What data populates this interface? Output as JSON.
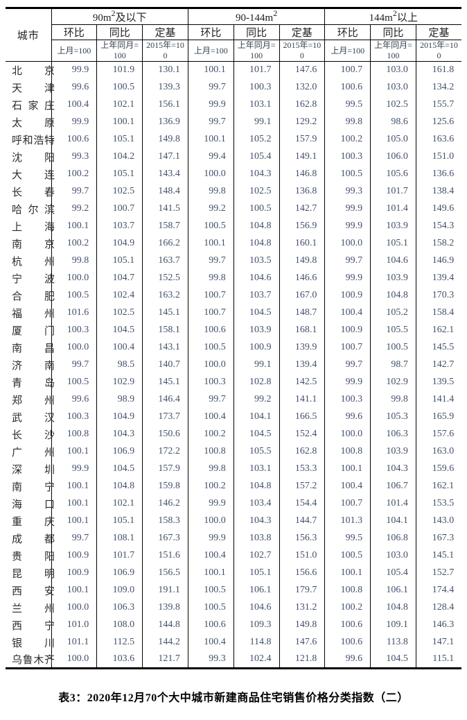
{
  "table": {
    "city_header": "城市",
    "groups": [
      {
        "prefix": "90m",
        "sup": "2",
        "suffix": "及以下"
      },
      {
        "prefix": "90-144m",
        "sup": "2",
        "suffix": ""
      },
      {
        "prefix": "144m",
        "sup": "2",
        "suffix": "以上"
      }
    ],
    "sub_headers": [
      "环比",
      "同比",
      "定基"
    ],
    "base_labels": [
      "上月=100",
      "上年同月=100",
      "2015年=100"
    ],
    "rows": [
      {
        "city": "北京",
        "values": [
          "99.9",
          "101.9",
          "130.1",
          "100.1",
          "101.7",
          "147.6",
          "100.7",
          "103.0",
          "161.8"
        ]
      },
      {
        "city": "天津",
        "values": [
          "99.6",
          "100.5",
          "139.3",
          "99.7",
          "100.3",
          "132.0",
          "100.6",
          "103.0",
          "134.2"
        ]
      },
      {
        "city": "石家庄",
        "values": [
          "100.4",
          "102.1",
          "156.1",
          "99.9",
          "103.1",
          "162.8",
          "99.5",
          "102.5",
          "155.7"
        ]
      },
      {
        "city": "太原",
        "values": [
          "99.9",
          "100.1",
          "136.9",
          "99.7",
          "99.1",
          "129.2",
          "99.8",
          "98.6",
          "125.6"
        ]
      },
      {
        "city": "呼和浩特",
        "values": [
          "100.6",
          "105.1",
          "149.8",
          "100.1",
          "105.2",
          "157.9",
          "100.2",
          "105.0",
          "163.6"
        ]
      },
      {
        "city": "沈阳",
        "values": [
          "99.3",
          "104.2",
          "147.1",
          "99.4",
          "105.4",
          "149.1",
          "100.3",
          "106.0",
          "151.0"
        ]
      },
      {
        "city": "大连",
        "values": [
          "100.2",
          "105.1",
          "143.4",
          "100.0",
          "104.3",
          "146.8",
          "100.5",
          "105.6",
          "136.6"
        ]
      },
      {
        "city": "长春",
        "values": [
          "99.7",
          "102.5",
          "148.4",
          "99.8",
          "102.5",
          "136.8",
          "99.3",
          "101.7",
          "138.4"
        ]
      },
      {
        "city": "哈尔滨",
        "values": [
          "99.2",
          "100.7",
          "141.5",
          "99.2",
          "100.5",
          "142.7",
          "99.9",
          "101.4",
          "149.6"
        ]
      },
      {
        "city": "上海",
        "values": [
          "100.1",
          "103.7",
          "158.7",
          "100.5",
          "104.8",
          "156.9",
          "99.9",
          "103.9",
          "154.3"
        ]
      },
      {
        "city": "南京",
        "values": [
          "100.2",
          "104.9",
          "166.2",
          "100.1",
          "104.8",
          "160.1",
          "100.0",
          "105.1",
          "158.2"
        ]
      },
      {
        "city": "杭州",
        "values": [
          "99.8",
          "105.1",
          "163.7",
          "99.7",
          "103.5",
          "149.8",
          "99.7",
          "104.6",
          "146.9"
        ]
      },
      {
        "city": "宁波",
        "values": [
          "100.0",
          "104.7",
          "152.5",
          "99.8",
          "104.6",
          "146.6",
          "99.9",
          "103.9",
          "139.4"
        ]
      },
      {
        "city": "合肥",
        "values": [
          "100.5",
          "102.4",
          "163.2",
          "100.7",
          "103.7",
          "167.0",
          "100.9",
          "104.8",
          "170.3"
        ]
      },
      {
        "city": "福州",
        "values": [
          "101.6",
          "102.5",
          "145.1",
          "100.7",
          "104.5",
          "148.7",
          "100.4",
          "105.2",
          "158.4"
        ]
      },
      {
        "city": "厦门",
        "values": [
          "100.3",
          "104.5",
          "158.1",
          "100.6",
          "103.9",
          "168.1",
          "100.9",
          "105.5",
          "162.1"
        ]
      },
      {
        "city": "南昌",
        "values": [
          "100.0",
          "100.4",
          "143.1",
          "100.5",
          "100.9",
          "139.9",
          "100.7",
          "100.5",
          "145.5"
        ]
      },
      {
        "city": "济南",
        "values": [
          "99.7",
          "98.5",
          "140.7",
          "100.0",
          "99.1",
          "139.4",
          "99.7",
          "98.7",
          "142.7"
        ]
      },
      {
        "city": "青岛",
        "values": [
          "100.5",
          "102.9",
          "145.1",
          "100.3",
          "102.8",
          "142.5",
          "99.9",
          "102.9",
          "139.5"
        ]
      },
      {
        "city": "郑州",
        "values": [
          "99.6",
          "98.9",
          "146.4",
          "99.7",
          "99.2",
          "141.1",
          "100.3",
          "99.8",
          "141.4"
        ]
      },
      {
        "city": "武汉",
        "values": [
          "100.3",
          "104.9",
          "173.7",
          "100.4",
          "104.1",
          "166.5",
          "99.6",
          "105.3",
          "165.9"
        ]
      },
      {
        "city": "长沙",
        "values": [
          "100.8",
          "104.3",
          "150.6",
          "100.2",
          "104.5",
          "152.4",
          "100.0",
          "106.3",
          "157.6"
        ]
      },
      {
        "city": "广州",
        "values": [
          "100.1",
          "106.9",
          "172.2",
          "100.8",
          "105.5",
          "162.8",
          "100.8",
          "103.9",
          "163.0"
        ]
      },
      {
        "city": "深圳",
        "values": [
          "99.9",
          "104.5",
          "157.9",
          "99.8",
          "103.1",
          "153.3",
          "100.1",
          "104.3",
          "159.6"
        ]
      },
      {
        "city": "南宁",
        "values": [
          "100.1",
          "104.8",
          "159.8",
          "100.2",
          "104.8",
          "157.2",
          "100.4",
          "106.7",
          "162.1"
        ]
      },
      {
        "city": "海口",
        "values": [
          "100.1",
          "102.1",
          "146.2",
          "99.9",
          "103.4",
          "154.4",
          "100.7",
          "101.4",
          "153.5"
        ]
      },
      {
        "city": "重庆",
        "values": [
          "100.1",
          "105.1",
          "158.3",
          "100.0",
          "104.3",
          "144.7",
          "101.3",
          "104.1",
          "143.0"
        ]
      },
      {
        "city": "成都",
        "values": [
          "99.7",
          "108.1",
          "167.3",
          "99.9",
          "103.8",
          "156.3",
          "99.5",
          "106.8",
          "167.3"
        ]
      },
      {
        "city": "贵阳",
        "values": [
          "100.9",
          "101.7",
          "151.6",
          "100.4",
          "102.7",
          "151.0",
          "100.5",
          "103.0",
          "145.1"
        ]
      },
      {
        "city": "昆明",
        "values": [
          "100.9",
          "106.9",
          "156.5",
          "100.1",
          "105.1",
          "156.6",
          "100.1",
          "105.4",
          "152.7"
        ]
      },
      {
        "city": "西安",
        "values": [
          "100.1",
          "109.0",
          "191.1",
          "100.5",
          "106.1",
          "179.7",
          "100.8",
          "106.1",
          "174.4"
        ]
      },
      {
        "city": "兰州",
        "values": [
          "100.0",
          "106.3",
          "139.8",
          "100.5",
          "104.6",
          "131.2",
          "100.2",
          "104.8",
          "128.4"
        ]
      },
      {
        "city": "西宁",
        "values": [
          "101.0",
          "108.0",
          "144.8",
          "100.6",
          "109.3",
          "149.8",
          "100.6",
          "109.1",
          "146.3"
        ]
      },
      {
        "city": "银川",
        "values": [
          "101.1",
          "112.5",
          "144.2",
          "100.4",
          "114.8",
          "147.6",
          "100.6",
          "113.8",
          "147.1"
        ]
      },
      {
        "city": "乌鲁木齐",
        "values": [
          "100.0",
          "103.6",
          "121.7",
          "99.3",
          "102.4",
          "121.8",
          "99.6",
          "104.5",
          "115.1"
        ]
      }
    ]
  },
  "caption": "表3：2020年12月70个大中城市新建商品住宅销售价格分类指数（二）"
}
